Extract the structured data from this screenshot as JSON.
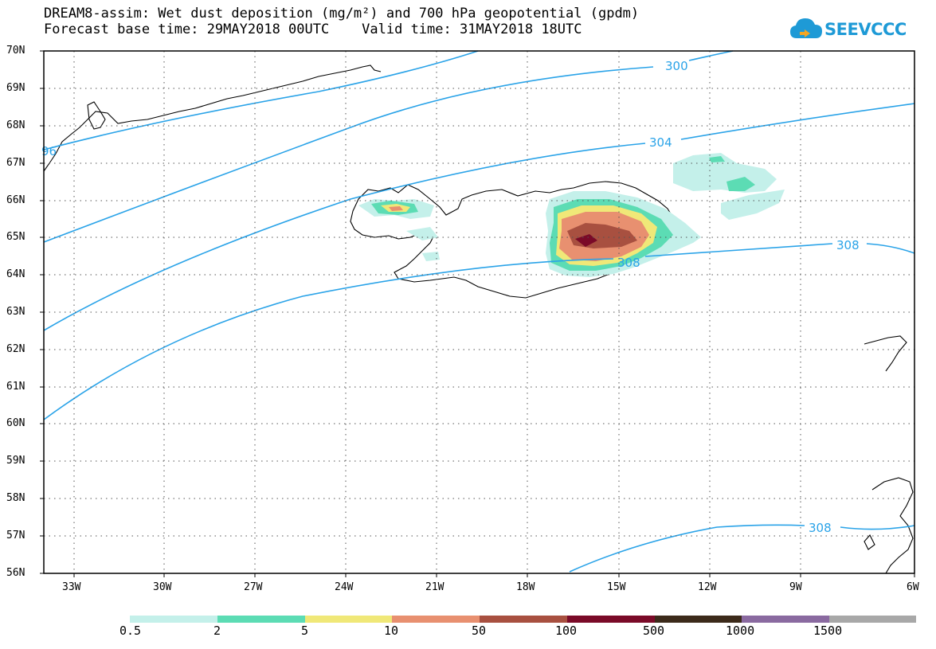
{
  "header": {
    "title_line1": "DREAM8-assim: Wet dust deposition (mg/m²) and 700 hPa geopotential (gpdm)",
    "title_line2": "Forecast base time: 29MAY2018 00UTC    Valid time: 31MAY2018 18UTC"
  },
  "logo": {
    "text": "SEEVCCC",
    "color": "#1e9ad6"
  },
  "map": {
    "lat_labels": [
      "70N",
      "69N",
      "68N",
      "67N",
      "66N",
      "65N",
      "64N",
      "63N",
      "62N",
      "61N",
      "60N",
      "59N",
      "58N",
      "57N",
      "56N"
    ],
    "lon_labels": [
      "33W",
      "30W",
      "27W",
      "24W",
      "21W",
      "18W",
      "15W",
      "12W",
      "9W",
      "6W"
    ],
    "contour_color": "#2aa3e8",
    "contour_labels": [
      "300",
      "304",
      "308",
      "308",
      "308",
      "96"
    ]
  },
  "colorbar": {
    "labels": [
      "0.5",
      "2",
      "5",
      "10",
      "50",
      "100",
      "500",
      "1000",
      "1500"
    ],
    "colors": [
      "#c4f0ea",
      "#5cdcb4",
      "#f0e878",
      "#e89070",
      "#a85040",
      "#7a0a28",
      "#3c2a1a",
      "#8a6aa0",
      "#a8a8a8"
    ]
  }
}
